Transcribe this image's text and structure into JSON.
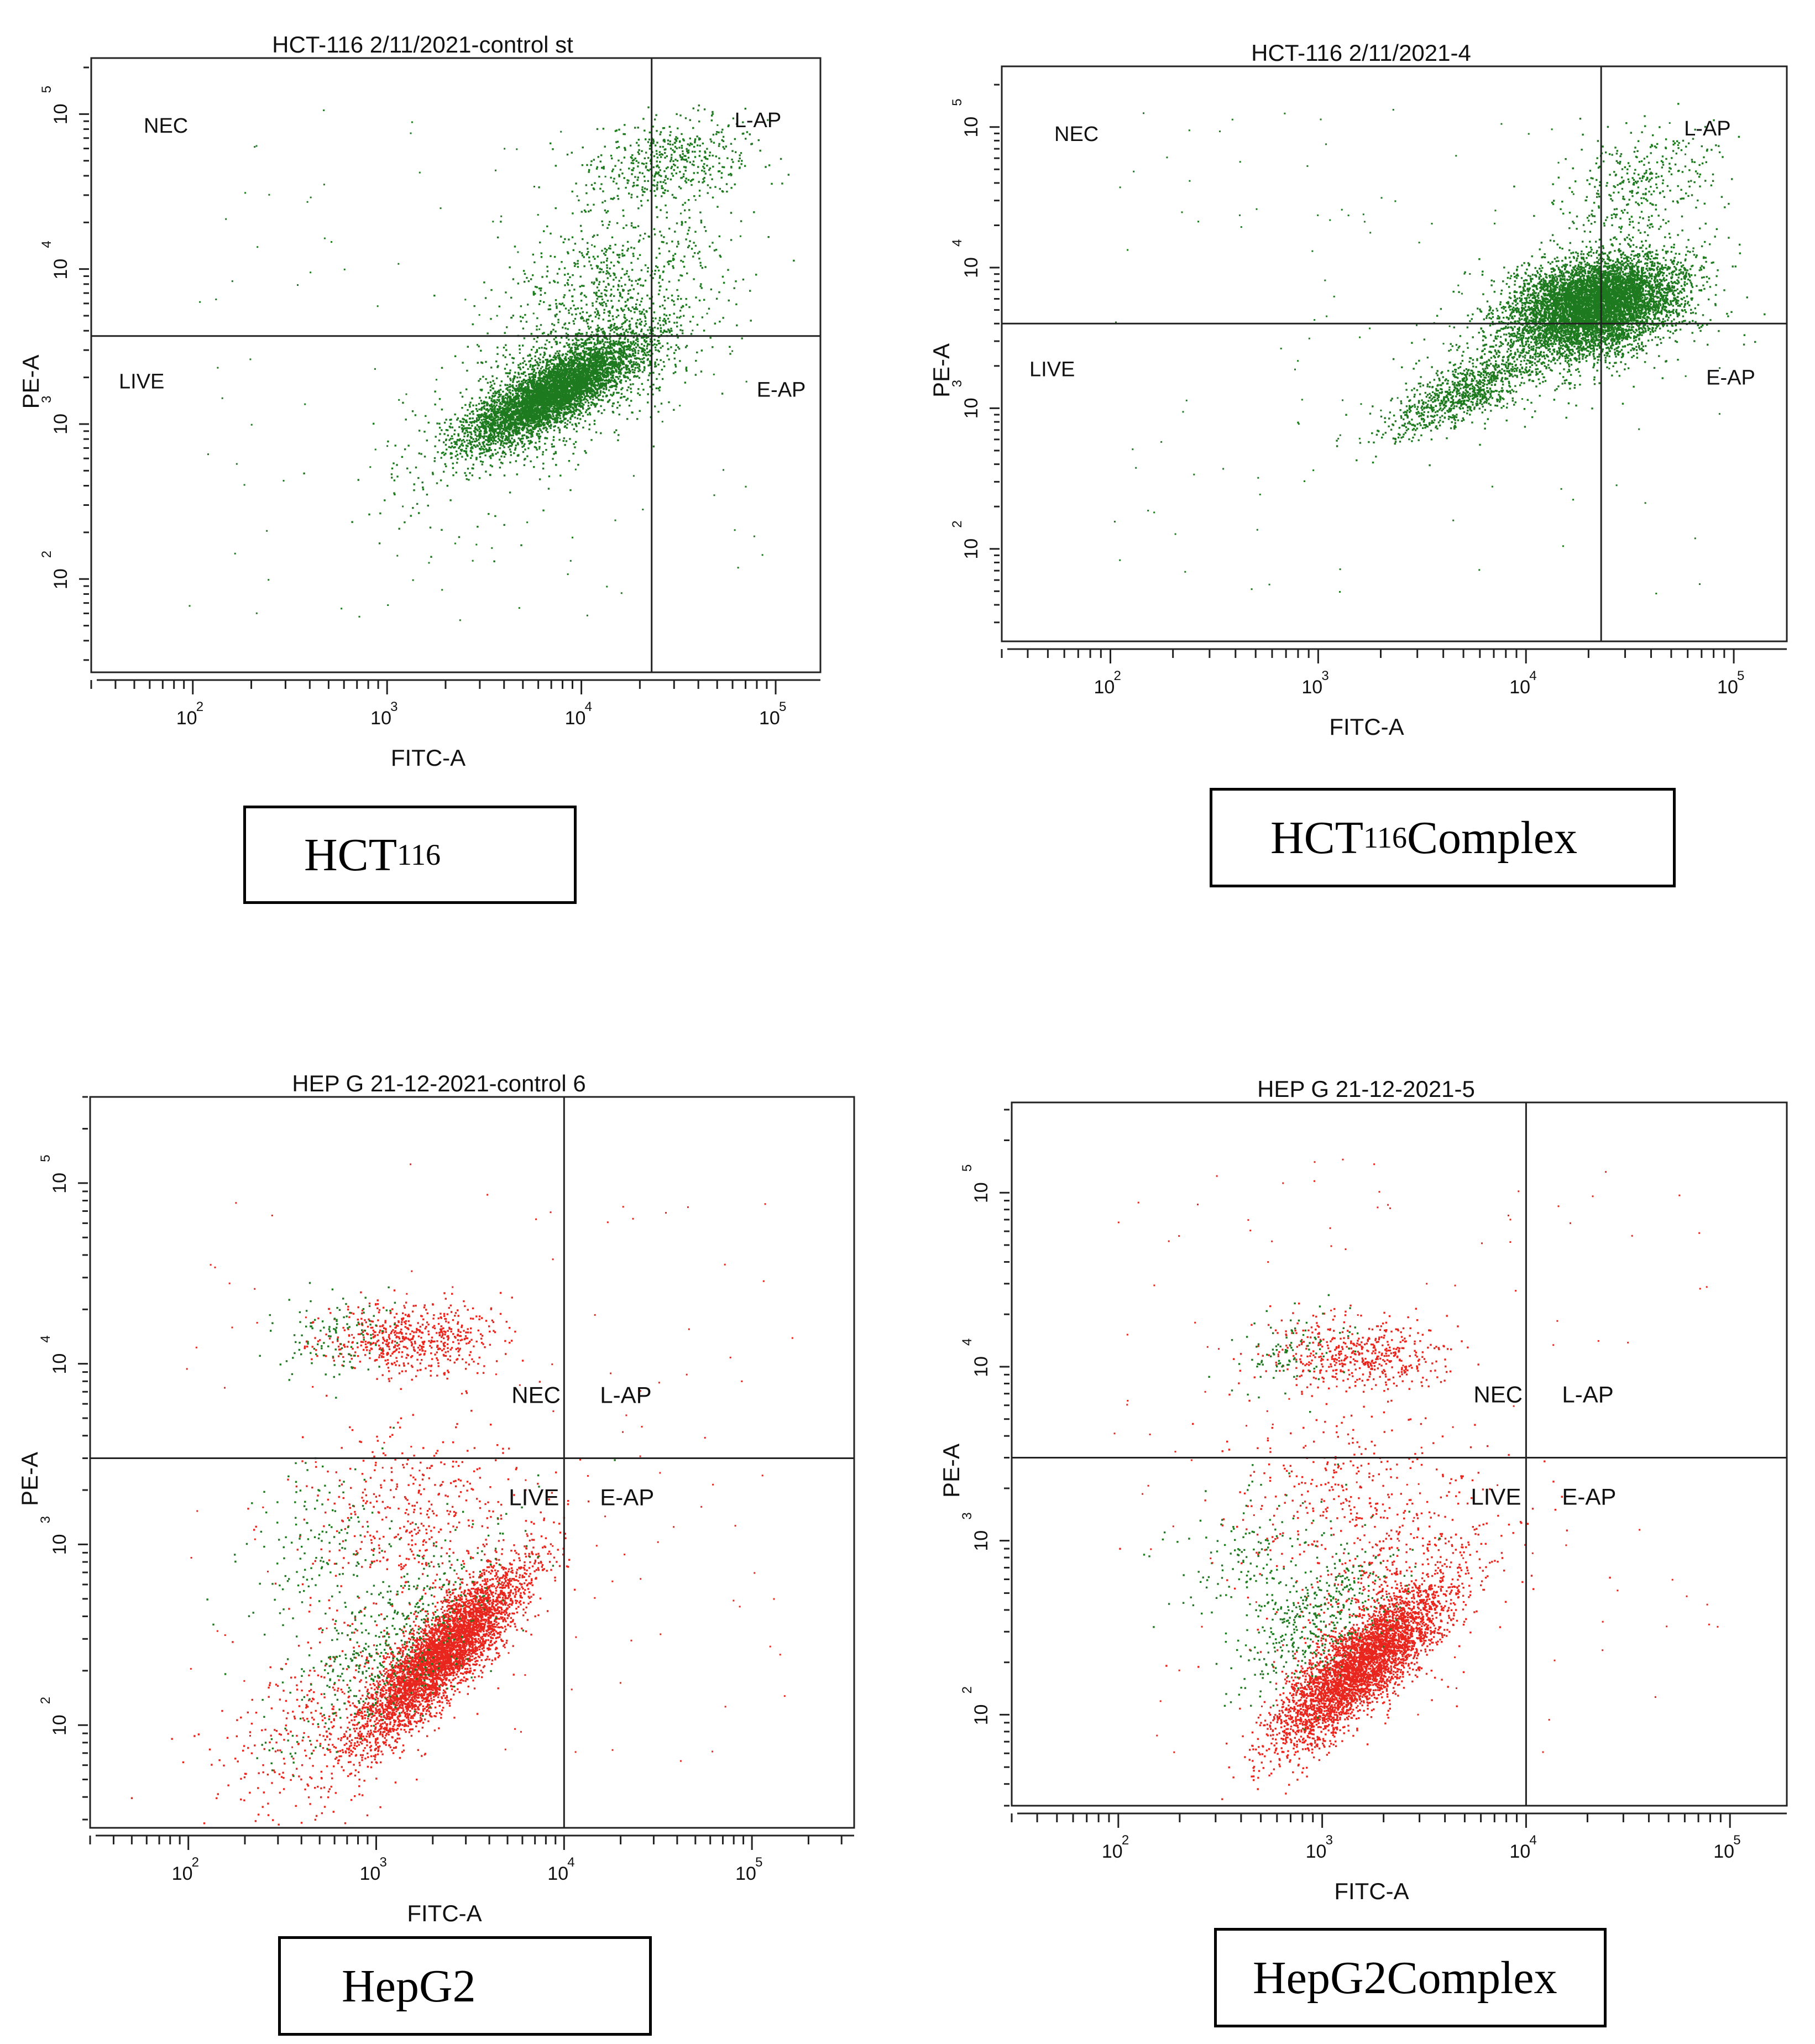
{
  "chart_data": [
    {
      "type": "scatter",
      "title": "HCT-116 2/11/2021-control st",
      "xlabel": "FITC-A",
      "ylabel": "PE-A",
      "x_scale": "log",
      "y_scale": "log",
      "xlim": [
        30,
        170000
      ],
      "ylim": [
        25,
        230000
      ],
      "x_ticks": [
        100,
        1000,
        10000,
        100000
      ],
      "y_ticks": [
        100,
        1000,
        10000,
        100000
      ],
      "tick_labels": [
        "10",
        "10",
        "10",
        "10"
      ],
      "tick_exponents": [
        "2",
        "3",
        "4",
        "5"
      ],
      "quadrant_gate": {
        "x": 23000,
        "y": 3700
      },
      "quadrant_labels": {
        "upper_left": "NEC",
        "upper_right": "L-AP",
        "lower_left": "LIVE",
        "lower_right": "E-AP"
      },
      "series": [
        {
          "name": "events",
          "color": "#1e7a1e",
          "clusters": [
            {
              "x": 7000,
              "y": 1600,
              "n": 5000,
              "sx": 0.22,
              "sy": 0.17,
              "corr": 0.8
            },
            {
              "x": 9500,
              "y": 2100,
              "n": 1000,
              "sx": 0.32,
              "sy": 0.28,
              "corr": 0.6
            },
            {
              "x": 28000,
              "y": 50000,
              "n": 500,
              "sx": 0.22,
              "sy": 0.14,
              "corr": 0.2
            },
            {
              "x": 13000,
              "y": 7500,
              "n": 600,
              "sx": 0.28,
              "sy": 0.25,
              "corr": 0.4
            },
            {
              "x": 3000,
              "y": 600,
              "n": 120,
              "sx": 0.35,
              "sy": 0.3,
              "corr": 0.5
            }
          ]
        }
      ]
    },
    {
      "type": "scatter",
      "title": "HCT-116 2/11/2021-4",
      "xlabel": "FITC-A",
      "ylabel": "PE-A",
      "x_scale": "log",
      "y_scale": "log",
      "xlim": [
        30,
        180000
      ],
      "ylim": [
        22,
        270000
      ],
      "x_ticks": [
        100,
        1000,
        10000,
        100000
      ],
      "y_ticks": [
        100,
        1000,
        10000,
        100000
      ],
      "tick_labels": [
        "10",
        "10",
        "10",
        "10"
      ],
      "tick_exponents": [
        "2",
        "3",
        "4",
        "5"
      ],
      "quadrant_gate": {
        "x": 23000,
        "y": 4000
      },
      "quadrant_labels": {
        "upper_left": "NEC",
        "upper_right": "L-AP",
        "lower_left": "LIVE",
        "lower_right": "E-AP"
      },
      "series": [
        {
          "name": "events",
          "color": "#1e7a1e",
          "clusters": [
            {
              "x": 21000,
              "y": 5500,
              "n": 6500,
              "sx": 0.2,
              "sy": 0.17,
              "corr": 0.3
            },
            {
              "x": 5000,
              "y": 1300,
              "n": 900,
              "sx": 0.18,
              "sy": 0.15,
              "corr": 0.75
            },
            {
              "x": 35000,
              "y": 40000,
              "n": 350,
              "sx": 0.2,
              "sy": 0.2,
              "corr": 0.3
            },
            {
              "x": 15000,
              "y": 3500,
              "n": 500,
              "sx": 0.35,
              "sy": 0.3,
              "corr": 0.5
            }
          ]
        }
      ]
    },
    {
      "type": "scatter",
      "title": "HEP G 21-12-2021-control 6",
      "xlabel": "FITC-A",
      "ylabel": "PE-A",
      "x_scale": "log",
      "y_scale": "log",
      "xlim": [
        30,
        350000
      ],
      "ylim": [
        27,
        300000
      ],
      "x_ticks": [
        100,
        1000,
        10000,
        100000
      ],
      "y_ticks": [
        100,
        1000,
        10000,
        100000
      ],
      "tick_labels": [
        "10",
        "10",
        "10",
        "10"
      ],
      "tick_exponents": [
        "2",
        "3",
        "4",
        "5"
      ],
      "quadrant_gate": {
        "x": 10000,
        "y": 3000
      },
      "quadrant_labels": {
        "upper_left": "NEC",
        "upper_right": "L-AP",
        "lower_left": "LIVE",
        "lower_right": "E-AP"
      },
      "series": [
        {
          "name": "red events",
          "color": "#e8261e",
          "clusters": [
            {
              "x": 2200,
              "y": 250,
              "n": 4500,
              "sx": 0.22,
              "sy": 0.24,
              "corr": 0.85
            },
            {
              "x": 1500,
              "y": 14000,
              "n": 600,
              "sx": 0.22,
              "sy": 0.1,
              "corr": 0.0
            },
            {
              "x": 700,
              "y": 130,
              "n": 500,
              "sx": 0.35,
              "sy": 0.35,
              "corr": 0.6
            },
            {
              "x": 1500,
              "y": 1600,
              "n": 400,
              "sx": 0.3,
              "sy": 0.25,
              "corr": 0.2
            }
          ]
        },
        {
          "name": "green events",
          "color": "#1e7a1e",
          "clusters": [
            {
              "x": 1200,
              "y": 300,
              "n": 500,
              "sx": 0.3,
              "sy": 0.3,
              "corr": 0.7
            },
            {
              "x": 600,
              "y": 15000,
              "n": 120,
              "sx": 0.15,
              "sy": 0.12,
              "corr": 0.2
            },
            {
              "x": 500,
              "y": 1000,
              "n": 150,
              "sx": 0.2,
              "sy": 0.25,
              "corr": 0.3
            }
          ]
        }
      ]
    },
    {
      "type": "scatter",
      "title": "HEP G 21-12-2021-5",
      "xlabel": "FITC-A",
      "ylabel": "PE-A",
      "x_scale": "log",
      "y_scale": "log",
      "xlim": [
        30,
        190000
      ],
      "ylim": [
        30,
        330000
      ],
      "x_ticks": [
        100,
        1000,
        10000,
        100000
      ],
      "y_ticks": [
        100,
        1000,
        10000,
        100000
      ],
      "tick_labels": [
        "10",
        "10",
        "10",
        "10"
      ],
      "tick_exponents": [
        "2",
        "3",
        "4",
        "5"
      ],
      "quadrant_gate": {
        "x": 10000,
        "y": 3000
      },
      "quadrant_labels": {
        "upper_left": "NEC",
        "upper_right": "L-AP",
        "lower_left": "LIVE",
        "lower_right": "E-AP"
      },
      "series": [
        {
          "name": "red events",
          "color": "#e8261e",
          "clusters": [
            {
              "x": 1500,
              "y": 190,
              "n": 4000,
              "sx": 0.2,
              "sy": 0.22,
              "corr": 0.8
            },
            {
              "x": 1500,
              "y": 12000,
              "n": 500,
              "sx": 0.22,
              "sy": 0.1,
              "corr": 0.0
            },
            {
              "x": 2200,
              "y": 500,
              "n": 500,
              "sx": 0.3,
              "sy": 0.3,
              "corr": 0.5
            },
            {
              "x": 1200,
              "y": 1800,
              "n": 300,
              "sx": 0.3,
              "sy": 0.25,
              "corr": 0.2
            }
          ]
        },
        {
          "name": "green events",
          "color": "#1e7a1e",
          "clusters": [
            {
              "x": 900,
              "y": 350,
              "n": 400,
              "sx": 0.2,
              "sy": 0.2,
              "corr": 0.6
            },
            {
              "x": 450,
              "y": 800,
              "n": 150,
              "sx": 0.2,
              "sy": 0.2,
              "corr": 0.3
            },
            {
              "x": 700,
              "y": 12000,
              "n": 100,
              "sx": 0.15,
              "sy": 0.12,
              "corr": 0.2
            }
          ]
        }
      ]
    }
  ],
  "captions": [
    {
      "main": "HCT",
      "sub": "116",
      "rest": ""
    },
    {
      "main": "HCT",
      "sub": "116",
      "rest": " Complex"
    },
    {
      "main": "HepG2",
      "sub": "",
      "rest": ""
    },
    {
      "main": "HepG2Complex",
      "sub": "",
      "rest": ""
    }
  ]
}
